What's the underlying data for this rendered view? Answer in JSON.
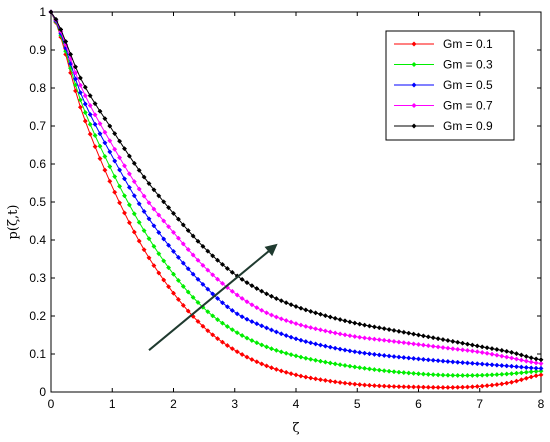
{
  "chart_data": {
    "type": "line",
    "xlabel": "ζ",
    "ylabel": "p(ζ,t)",
    "xlim": [
      0,
      8
    ],
    "ylim": [
      0,
      1
    ],
    "xticks": [
      "0",
      "1",
      "2",
      "3",
      "4",
      "5",
      "6",
      "7",
      "8"
    ],
    "yticks": [
      "0",
      "0.1",
      "0.2",
      "0.3",
      "0.4",
      "0.5",
      "0.6",
      "0.7",
      "0.8",
      "0.9",
      "1"
    ],
    "grid": false,
    "legend_position": "top-right",
    "annotation": "arrow indicating increasing Gm",
    "x": [
      0,
      0.5,
      1,
      1.5,
      2,
      2.5,
      3,
      3.5,
      4,
      4.5,
      5,
      5.5,
      6,
      6.5,
      7,
      7.5,
      8
    ],
    "series": [
      {
        "name": "Gm = 0.1",
        "color": "#ff0000",
        "values": [
          1.0,
          0.74,
          0.54,
          0.38,
          0.26,
          0.17,
          0.11,
          0.07,
          0.045,
          0.03,
          0.02,
          0.015,
          0.013,
          0.012,
          0.015,
          0.025,
          0.045
        ]
      },
      {
        "name": "Gm = 0.3",
        "color": "#00ee00",
        "values": [
          1.0,
          0.76,
          0.58,
          0.43,
          0.31,
          0.22,
          0.16,
          0.12,
          0.095,
          0.078,
          0.065,
          0.055,
          0.048,
          0.044,
          0.044,
          0.048,
          0.055
        ]
      },
      {
        "name": "Gm = 0.5",
        "color": "#0000ff",
        "values": [
          1.0,
          0.78,
          0.62,
          0.48,
          0.37,
          0.28,
          0.21,
          0.17,
          0.14,
          0.12,
          0.105,
          0.095,
          0.087,
          0.08,
          0.074,
          0.068,
          0.062
        ]
      },
      {
        "name": "Gm = 0.7",
        "color": "#ff00ff",
        "values": [
          1.0,
          0.8,
          0.65,
          0.52,
          0.42,
          0.33,
          0.26,
          0.21,
          0.18,
          0.16,
          0.145,
          0.135,
          0.125,
          0.115,
          0.105,
          0.09,
          0.075
        ]
      },
      {
        "name": "Gm = 0.9",
        "color": "#000000",
        "values": [
          1.0,
          0.82,
          0.69,
          0.57,
          0.47,
          0.38,
          0.31,
          0.26,
          0.225,
          0.2,
          0.18,
          0.165,
          0.15,
          0.135,
          0.12,
          0.105,
          0.085
        ]
      }
    ]
  }
}
